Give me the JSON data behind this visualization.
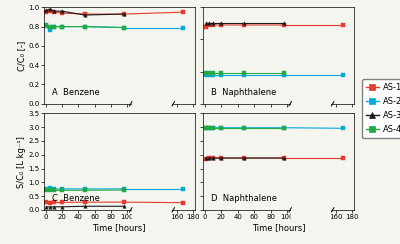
{
  "time_main": [
    1,
    5,
    10,
    20,
    48,
    96
  ],
  "time_extra": [
    168
  ],
  "colors": {
    "AS-1": "#e63b2e",
    "AS-2": "#00aadd",
    "AS-3": "#1a1a1a",
    "AS-4": "#22aa44"
  },
  "markers": {
    "AS-1": "s",
    "AS-2": "s",
    "AS-3": "^",
    "AS-4": "s"
  },
  "A_Benzene_CC0": {
    "AS-1": [
      0.95,
      0.96,
      0.95,
      0.94,
      0.93,
      0.93,
      0.95
    ],
    "AS-2": [
      0.81,
      0.76,
      0.8,
      0.8,
      0.8,
      0.79,
      0.79
    ],
    "AS-3": [
      0.97,
      0.98,
      0.96,
      0.96,
      0.92,
      0.93,
      null
    ],
    "AS-4": [
      0.82,
      0.8,
      0.8,
      0.8,
      0.8,
      0.79,
      null
    ]
  },
  "B_Naphthalene_CC0": {
    "AS-1": [
      0.48,
      0.49,
      0.49,
      0.49,
      0.49,
      0.49,
      0.49
    ],
    "AS-2": [
      0.18,
      0.18,
      0.18,
      0.18,
      0.18,
      0.18,
      0.18
    ],
    "AS-3": [
      0.5,
      0.5,
      0.5,
      0.5,
      0.5,
      0.5,
      null
    ],
    "AS-4": [
      0.19,
      0.19,
      0.19,
      0.19,
      0.19,
      0.19,
      null
    ]
  },
  "C_Benzene_SC0": {
    "AS-1": [
      0.27,
      0.26,
      0.27,
      0.27,
      0.28,
      0.28,
      0.26
    ],
    "AS-2": [
      0.74,
      0.81,
      0.75,
      0.76,
      0.76,
      0.76,
      0.76
    ],
    "AS-3": [
      0.11,
      0.1,
      0.11,
      0.11,
      0.13,
      0.13,
      null
    ],
    "AS-4": [
      0.71,
      0.72,
      0.71,
      0.71,
      0.71,
      0.72,
      null
    ]
  },
  "D_Naphthalene_SC0": {
    "AS-1": [
      1.85,
      1.87,
      1.88,
      1.88,
      1.88,
      1.88,
      1.88
    ],
    "AS-2": [
      2.97,
      2.98,
      2.98,
      2.98,
      2.98,
      2.98,
      2.96
    ],
    "AS-3": [
      1.87,
      1.88,
      1.88,
      1.88,
      1.88,
      1.88,
      null
    ],
    "AS-4": [
      2.98,
      2.98,
      2.98,
      2.98,
      2.98,
      2.98,
      null
    ]
  },
  "legend_labels": [
    "AS-1",
    "AS-2",
    "AS-3",
    "AS-4"
  ],
  "xlabel": "Time [hours]",
  "ylabel_top": "C/C₀ [-]",
  "ylabel_bottom": "S/C₀ [L kg⁻¹]",
  "A_ylim": [
    0.0,
    1.0
  ],
  "B_ylim": [
    0.0,
    0.6
  ],
  "C_ylim": [
    0.0,
    3.5
  ],
  "D_ylim": [
    0.0,
    3.5
  ],
  "A_yticks": [
    0.0,
    0.2,
    0.4,
    0.6,
    0.8,
    1.0
  ],
  "B_yticks": [
    0.0,
    0.2,
    0.4,
    0.6
  ],
  "C_yticks": [
    0.0,
    0.5,
    1.0,
    1.5,
    2.0,
    2.5,
    3.0,
    3.5
  ],
  "D_yticks": [
    0.0,
    0.5,
    1.0,
    1.5,
    2.0,
    2.5,
    3.0,
    3.5
  ],
  "background_color": "#f5f5f0"
}
